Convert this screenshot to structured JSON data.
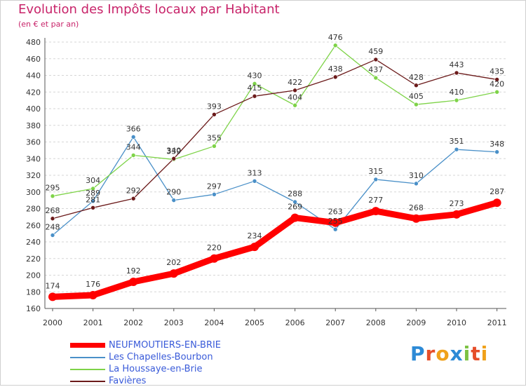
{
  "header": {
    "title": "Evolution des Impôts locaux par Habitant",
    "subtitle": "(en € et par an)"
  },
  "brand": {
    "name": "Proxiti",
    "letters": [
      "P",
      "r",
      "o",
      "x",
      "i",
      "t",
      "i"
    ],
    "colors": [
      "#2d8ad6",
      "#e64e2a",
      "#f0a11a",
      "#2d8ad6",
      "#7cc243",
      "#e64e2a",
      "#f0a11a"
    ]
  },
  "chart_data": {
    "type": "line",
    "title": "Evolution des Impôts locaux par Habitant",
    "subtitle": "(en € et par an)",
    "x": [
      "2000",
      "2001",
      "2002",
      "2003",
      "2004",
      "2005",
      "2006",
      "2007",
      "2008",
      "2009",
      "2010",
      "2011"
    ],
    "ylim": [
      160,
      480
    ],
    "yticks": [
      160,
      180,
      200,
      220,
      240,
      260,
      280,
      300,
      320,
      340,
      360,
      380,
      400,
      420,
      440,
      460,
      480
    ],
    "grid": "horizontal-dashed",
    "legend_position": "bottom-left",
    "series": [
      {
        "name": "NEUFMOUTIERS-EN-BRIE",
        "color": "#ff0000",
        "values": [
          174,
          176,
          192,
          202,
          220,
          234,
          269,
          263,
          277,
          268,
          273,
          287
        ]
      },
      {
        "name": "Les Chapelles-Bourbon",
        "color": "#4a90c8",
        "values": [
          248,
          289,
          366,
          290,
          297,
          313,
          288,
          255,
          315,
          310,
          351,
          348
        ]
      },
      {
        "name": "La Houssaye-en-Brie",
        "color": "#7ed348",
        "values": [
          295,
          304,
          344,
          339,
          355,
          430,
          404,
          476,
          437,
          405,
          410,
          420
        ]
      },
      {
        "name": "Favières",
        "color": "#6b1a1a",
        "values": [
          268,
          281,
          292,
          340,
          393,
          415,
          422,
          438,
          459,
          428,
          443,
          435
        ]
      }
    ]
  }
}
